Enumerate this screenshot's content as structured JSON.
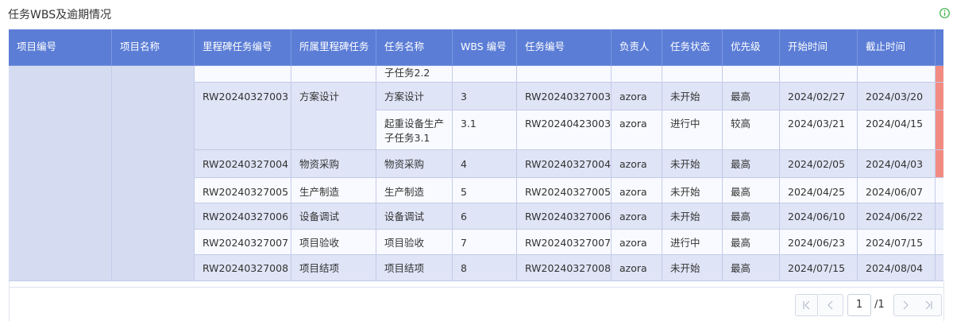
{
  "header": {
    "title": "任务WBS及逾期情况"
  },
  "table": {
    "columns": [
      "项目编号",
      "项目名称",
      "里程碑任务编号",
      "所属里程碑任务",
      "任务名称",
      "WBS 编号",
      "任务编号",
      "负责人",
      "任务状态",
      "优先级",
      "开始时间",
      "截止时间"
    ],
    "rows": [
      {
        "cells": [
          null,
          null,
          null,
          null,
          "子任务2.2",
          null,
          null,
          null,
          null,
          null,
          null,
          null
        ]
      },
      {
        "cells": [
          null,
          null,
          "RW20240327003",
          "方案设计",
          "方案设计",
          "3",
          "RW20240327003",
          "azora",
          "未开始",
          "最高",
          "2024/02/27",
          "2024/03/20"
        ]
      },
      {
        "cells": [
          null,
          null,
          null,
          null,
          "起重设备生产子任务3.1",
          "3.1",
          "RW20240423003",
          "azora",
          "进行中",
          "较高",
          "2024/03/21",
          "2024/04/15"
        ]
      },
      {
        "cells": [
          null,
          null,
          "RW20240327004",
          "物资采购",
          "物资采购",
          "4",
          "RW20240327004",
          "azora",
          "未开始",
          "最高",
          "2024/02/05",
          "2024/04/03"
        ]
      },
      {
        "cells": [
          null,
          null,
          "RW20240327005",
          "生产制造",
          "生产制造",
          "5",
          "RW20240327005",
          "azora",
          "未开始",
          "最高",
          "2024/04/25",
          "2024/06/07"
        ]
      },
      {
        "cells": [
          null,
          null,
          "RW20240327006",
          "设备调试",
          "设备调试",
          "6",
          "RW20240327006",
          "azora",
          "未开始",
          "最高",
          "2024/06/10",
          "2024/06/22"
        ]
      },
      {
        "cells": [
          null,
          null,
          "RW20240327007",
          "项目验收",
          "项目验收",
          "7",
          "RW20240327007",
          "azora",
          "进行中",
          "最高",
          "2024/06/23",
          "2024/07/15"
        ]
      },
      {
        "cells": [
          null,
          null,
          "RW20240327008",
          "项目结项",
          "项目结项",
          "8",
          "RW20240327008",
          "azora",
          "未开始",
          "最高",
          "2024/07/15",
          "2024/08/04"
        ]
      }
    ]
  },
  "pagination": {
    "page": "1",
    "total": "/1"
  }
}
